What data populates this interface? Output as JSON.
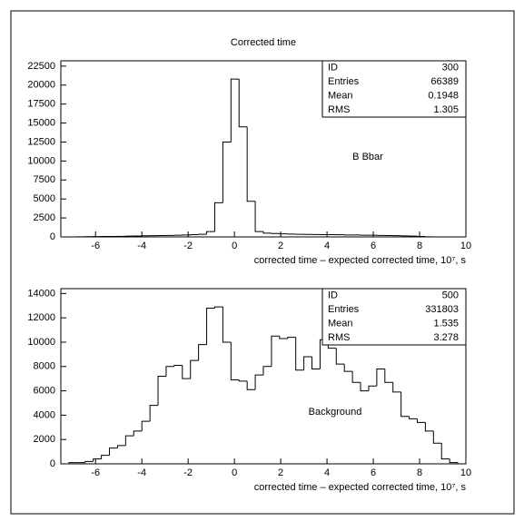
{
  "title": "Corrected time",
  "chart_data": [
    {
      "type": "histogram",
      "bins": [
        -7.5,
        -7.15,
        -6.8,
        -6.45,
        -6.1,
        -5.75,
        -5.4,
        -5.05,
        -4.7,
        -4.35,
        -4,
        -3.65,
        -3.3,
        -2.95,
        -2.6,
        -2.25,
        -1.9,
        -1.55,
        -1.2,
        -0.85,
        -0.5,
        -0.15,
        0.2,
        0.55,
        0.9,
        1.25,
        1.6,
        1.95,
        2.3,
        2.65,
        3,
        3.35,
        3.7,
        4.05,
        4.4,
        4.75,
        5.1,
        5.45,
        5.8,
        6.15,
        6.5,
        6.85,
        7.2,
        7.55,
        7.9,
        8.25,
        8.6,
        8.95,
        9.3,
        9.65,
        10
      ],
      "values": [
        0,
        0,
        20,
        30,
        40,
        60,
        60,
        80,
        100,
        120,
        150,
        160,
        180,
        200,
        220,
        250,
        300,
        350,
        700,
        4500,
        12500,
        20800,
        14500,
        4700,
        700,
        500,
        450,
        400,
        380,
        350,
        330,
        320,
        300,
        300,
        280,
        260,
        250,
        230,
        220,
        200,
        180,
        160,
        140,
        100,
        60,
        20,
        0,
        0,
        0,
        0
      ],
      "color": "#000000",
      "xlim": [
        -7.5,
        10
      ],
      "xticks": [
        -6,
        -4,
        -2,
        0,
        2,
        4,
        6,
        8,
        10
      ],
      "ylim": [
        0,
        23200
      ],
      "yticks": [
        0,
        2500,
        5000,
        7500,
        10000,
        12500,
        15000,
        17500,
        20000,
        22500
      ],
      "x_label": "corrected time – expected corrected time, 10⁷, s",
      "annotation": "B Bbar",
      "stats": [
        {
          "label": "ID",
          "value": 300
        },
        {
          "label": "Entries",
          "value": 66389
        },
        {
          "label": "Mean",
          "value": 0.1948
        },
        {
          "label": "RMS",
          "value": 1.305
        }
      ]
    },
    {
      "type": "histogram",
      "bins": [
        -7.5,
        -7.15,
        -6.8,
        -6.45,
        -6.1,
        -5.75,
        -5.4,
        -5.05,
        -4.7,
        -4.35,
        -4,
        -3.65,
        -3.3,
        -2.95,
        -2.6,
        -2.25,
        -1.9,
        -1.55,
        -1.2,
        -0.85,
        -0.5,
        -0.15,
        0.2,
        0.55,
        0.9,
        1.25,
        1.6,
        1.95,
        2.3,
        2.65,
        3,
        3.35,
        3.7,
        4.05,
        4.4,
        4.75,
        5.1,
        5.45,
        5.8,
        6.15,
        6.5,
        6.85,
        7.2,
        7.55,
        7.9,
        8.25,
        8.6,
        8.95,
        9.3,
        9.65,
        10
      ],
      "values": [
        0,
        100,
        100,
        200,
        400,
        700,
        1300,
        1500,
        2300,
        2700,
        3500,
        4800,
        7200,
        8000,
        8100,
        7000,
        8500,
        9800,
        12800,
        12900,
        10000,
        6900,
        6800,
        6100,
        7300,
        8000,
        10500,
        10300,
        10400,
        7700,
        8800,
        7800,
        10200,
        9500,
        8200,
        7600,
        6700,
        6000,
        6400,
        7800,
        6700,
        5900,
        3900,
        3700,
        3400,
        2700,
        1700,
        400,
        100,
        0
      ],
      "color": "#000000",
      "xlim": [
        -7.5,
        10
      ],
      "xticks": [
        -6,
        -4,
        -2,
        0,
        2,
        4,
        6,
        8,
        10
      ],
      "ylim": [
        0,
        14400
      ],
      "yticks": [
        0,
        2000,
        4000,
        6000,
        8000,
        10000,
        12000,
        14000
      ],
      "x_label": "corrected time – expected corrected time, 10⁷, s",
      "annotation": "Background",
      "stats": [
        {
          "label": "ID",
          "value": 500
        },
        {
          "label": "Entries",
          "value": 331803
        },
        {
          "label": "Mean",
          "value": 1.535
        },
        {
          "label": "RMS",
          "value": 3.278
        }
      ]
    }
  ]
}
